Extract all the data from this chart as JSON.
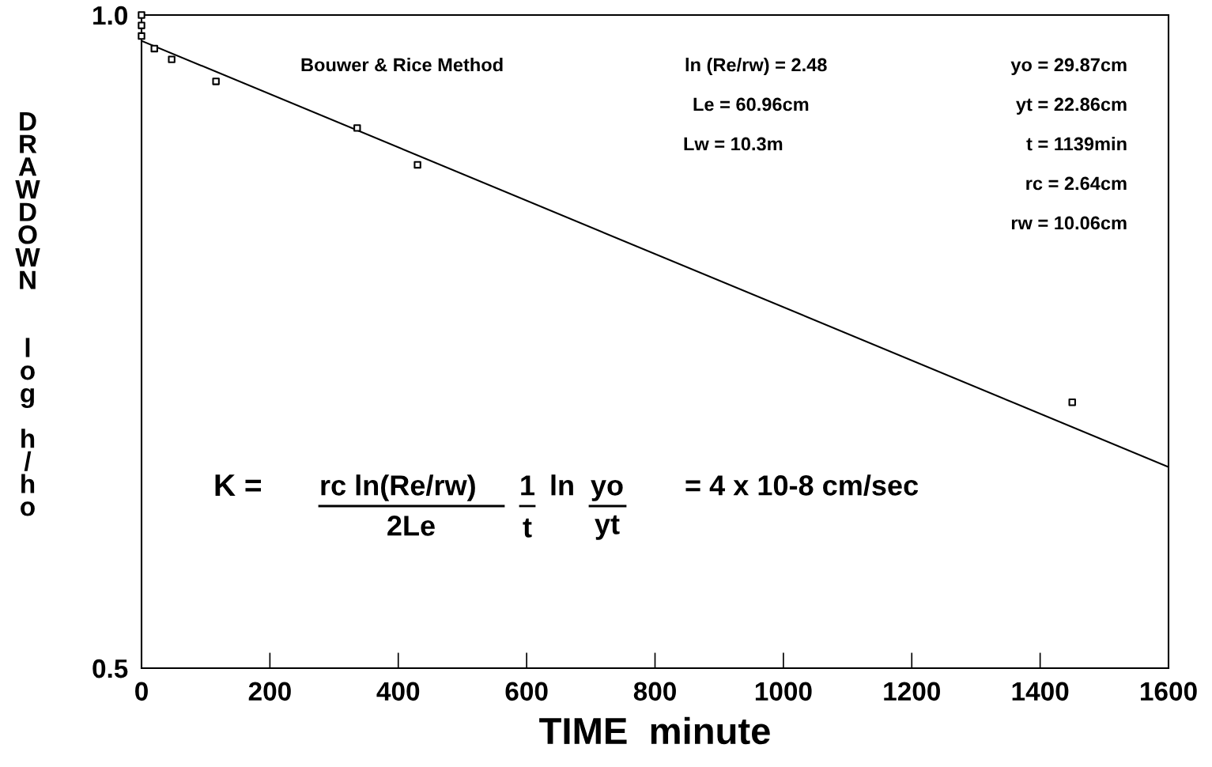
{
  "chart_data": {
    "type": "scatter",
    "xlabel": "TIME  minute",
    "ylabel": "DRAWDOWN  log h/ho",
    "series": [
      {
        "color": "#000000",
        "marker": "square",
        "x": [
          0,
          0,
          0,
          20,
          47,
          116,
          336,
          430,
          1450
        ],
        "values": [
          1.0,
          0.989,
          0.978,
          0.965,
          0.954,
          0.932,
          0.887,
          0.853,
          0.663
        ]
      },
      {
        "type": "line",
        "color": "#000000",
        "marker": "none",
        "line_style": "solid",
        "x": [
          0,
          1600
        ],
        "values": [
          0.973,
          0.619
        ]
      }
    ],
    "log": "y",
    "xlim": [
      0,
      1600
    ],
    "xticks": [
      0,
      200,
      400,
      600,
      800,
      1000,
      1200,
      1400,
      1600
    ],
    "ylim": [
      0.5,
      1.0
    ],
    "yticks": [
      {
        "value": 0.5,
        "label": "0.5"
      },
      {
        "value": 1.0,
        "label": "1.0"
      }
    ],
    "grid": false,
    "legend": false,
    "annotations": [
      "Bouwer & Rice Method",
      "ln (Re/rw) = 2.48",
      "Le = 60.96cm",
      "Lw = 10.3m",
      "yo = 29.87cm",
      "yt = 22.86cm",
      "t = 1139min",
      "rc = 2.64cm",
      "rw = 10.06cm",
      "K =",
      "rc ln(Re/rw)",
      "2Le",
      "1",
      "t",
      "ln",
      "yo",
      "yt",
      "= 4 x 10-8 cm/sec"
    ]
  }
}
